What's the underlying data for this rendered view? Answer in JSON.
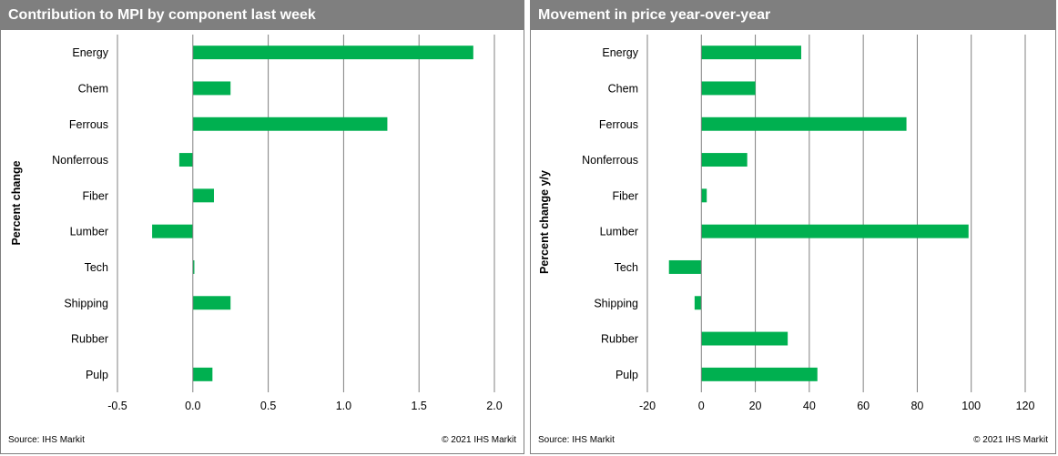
{
  "panels": {
    "left": {
      "title": "Contribution to MPI by component last week",
      "source": "Source:  IHS Markit",
      "copyright": "© 2021  IHS Markit"
    },
    "right": {
      "title": "Movement in price year-over-year",
      "source": "Source:  IHS Markit",
      "copyright": "© 2021  IHS Markit"
    }
  },
  "colors": {
    "bar": "#00b050",
    "grid": "#808080",
    "header_bg": "#7f7f7f"
  },
  "chart_data": [
    {
      "type": "bar",
      "orientation": "horizontal",
      "title": "Contribution to MPI by component last week",
      "ylabel": "Percent change",
      "xlabel": "",
      "categories": [
        "Energy",
        "Chem",
        "Ferrous",
        "Nonferrous",
        "Fiber",
        "Lumber",
        "Tech",
        "Shipping",
        "Rubber",
        "Pulp"
      ],
      "values": [
        1.86,
        0.25,
        1.29,
        -0.09,
        0.14,
        -0.27,
        0.01,
        0.25,
        0.0,
        0.13
      ],
      "xlim": [
        -0.5,
        2.0
      ],
      "xticks": [
        -0.5,
        0.0,
        0.5,
        1.0,
        1.5,
        2.0
      ],
      "xtick_labels": [
        "-0.5",
        "0.0",
        "0.5",
        "1.0",
        "1.5",
        "2.0"
      ],
      "grid": "vertical"
    },
    {
      "type": "bar",
      "orientation": "horizontal",
      "title": "Movement in price year-over-year",
      "ylabel": "Percent change y/y",
      "xlabel": "",
      "categories": [
        "Energy",
        "Chem",
        "Ferrous",
        "Nonferrous",
        "Fiber",
        "Lumber",
        "Tech",
        "Shipping",
        "Rubber",
        "Pulp"
      ],
      "values": [
        37,
        20,
        76,
        17,
        2,
        99,
        -12,
        -2.5,
        32,
        43
      ],
      "xlim": [
        -20,
        120
      ],
      "xticks": [
        -20,
        0,
        20,
        40,
        60,
        80,
        100,
        120
      ],
      "xtick_labels": [
        "-20",
        "0",
        "20",
        "40",
        "60",
        "80",
        "100",
        "120"
      ],
      "grid": "vertical"
    }
  ]
}
